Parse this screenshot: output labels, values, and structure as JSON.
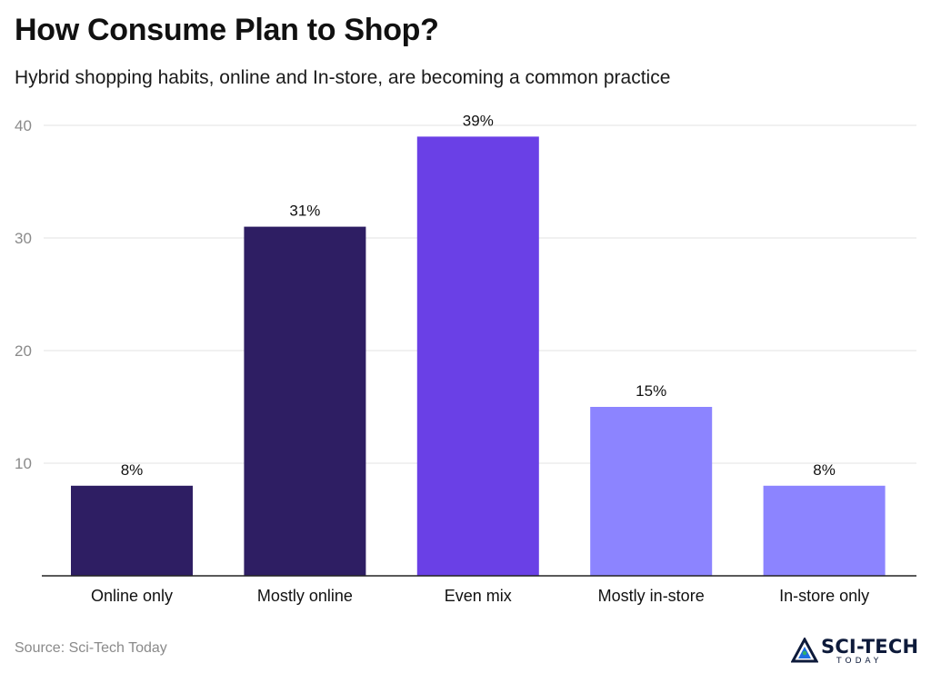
{
  "header": {
    "title": "How Consume Plan to Shop?",
    "subtitle": "Hybrid shopping habits, online and In-store, are becoming a common practice"
  },
  "footer": {
    "source": "Source: Sci-Tech Today",
    "logo_text": "SCI-TECH",
    "logo_sub": "TODAY",
    "logo_icon": "scitech-logo-icon"
  },
  "chart_data": {
    "type": "bar",
    "categories": [
      "Online only",
      "Mostly online",
      "Even mix",
      "Mostly in-store",
      "In-store only"
    ],
    "values": [
      8,
      31,
      39,
      15,
      8
    ],
    "value_labels": [
      "8%",
      "31%",
      "39%",
      "15%",
      "8%"
    ],
    "bar_colors": [
      "#2e1e63",
      "#2e1e63",
      "#6a40e6",
      "#8c84ff",
      "#8c84ff"
    ],
    "yticks": [
      10,
      20,
      30,
      40
    ],
    "ylim": [
      0,
      40
    ],
    "grid": true,
    "gridline_color": "#e3e3e3",
    "axis_color": "#222222",
    "legend": "none"
  }
}
